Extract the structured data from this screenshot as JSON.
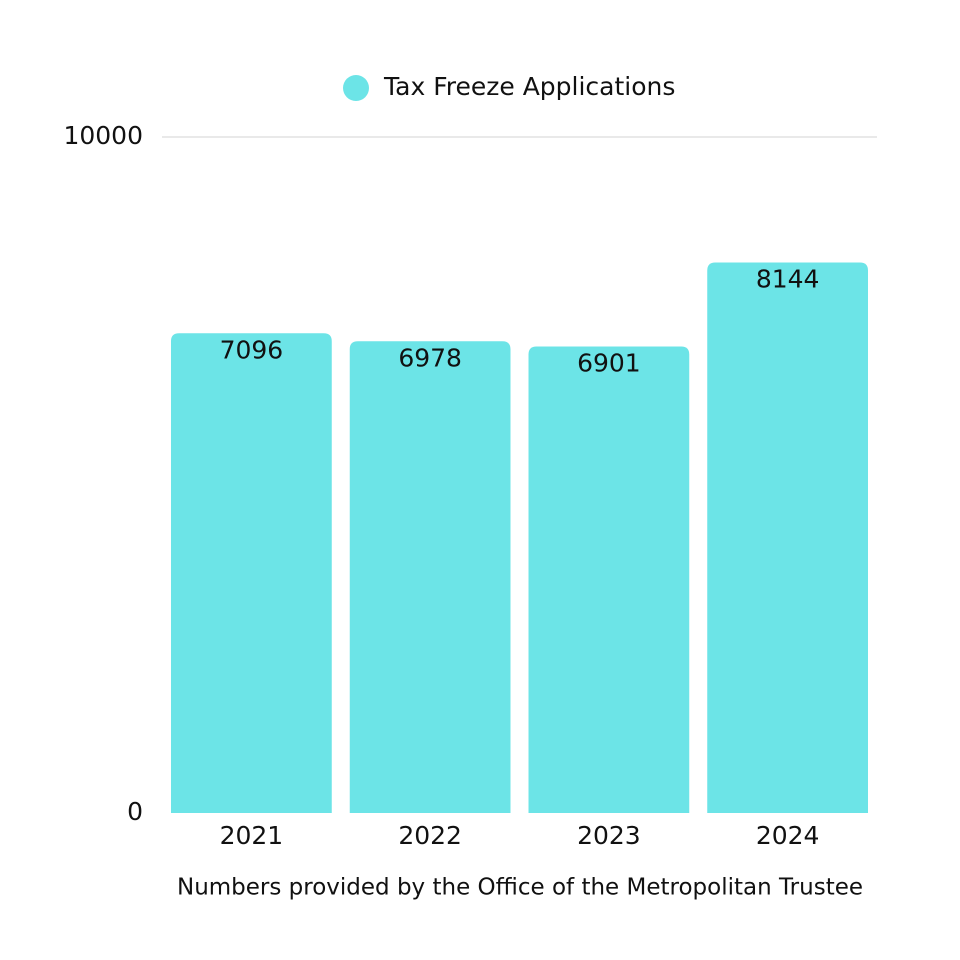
{
  "chart_data": {
    "type": "bar",
    "categories": [
      "2021",
      "2022",
      "2023",
      "2024"
    ],
    "series": [
      {
        "name": "Tax Freeze Applications",
        "color": "#6ce4e7",
        "values": [
          7096,
          6978,
          6901,
          8144
        ]
      }
    ],
    "ylim": [
      0,
      10000
    ],
    "yticks": [
      0,
      10000
    ],
    "grid": true,
    "legend": "top",
    "caption": "Numbers provided by the Office of the Metropolitan Trustee"
  }
}
